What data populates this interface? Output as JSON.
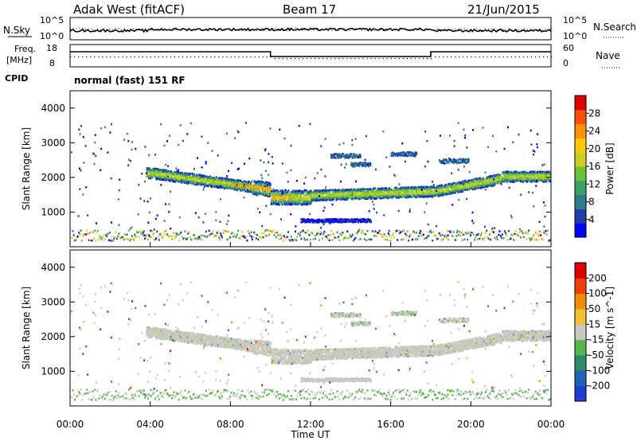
{
  "header": {
    "radar": "Adak West (fitACF)",
    "beam": "Beam 17",
    "date": "21/Jun/2015"
  },
  "top_panel": {
    "left_label": "N.Sky",
    "right_label": "N.Search",
    "left_ticks": [
      "10^5",
      "10^0"
    ],
    "right_ticks": [
      "10^5",
      "10^0"
    ]
  },
  "freq_panel": {
    "left_label_1": "Freq.",
    "left_label_2": "[MHz]",
    "right_label": "Nave",
    "left_ticks": [
      "18",
      "8"
    ],
    "right_ticks": [
      "60",
      "0"
    ]
  },
  "cpid": {
    "label": "CPID",
    "mode": "normal (fast) 151 RF"
  },
  "chart_data": [
    {
      "type": "heatmap",
      "name": "power",
      "ylabel": "Slant Range [km]",
      "yticks": [
        "4000",
        "3000",
        "2000",
        "1000"
      ],
      "colorbar_label": "Power [dB]",
      "colorbar_ticks": [
        "28",
        "24",
        "20",
        "16",
        "12",
        "8",
        "4"
      ],
      "colors": [
        "#0000ff",
        "#1c3fa8",
        "#2e7d8a",
        "#3aa06a",
        "#6ac43a",
        "#c8d020",
        "#ffc800",
        "#ff9000",
        "#ff5000",
        "#e00000"
      ]
    },
    {
      "type": "heatmap",
      "name": "velocity",
      "ylabel": "Slant Range [km]",
      "yticks": [
        "4000",
        "3000",
        "2000",
        "1000"
      ],
      "colorbar_label": "Velocity [m s^-1]",
      "colorbar_ticks": [
        "200",
        "100",
        "50",
        "15",
        "-15",
        "-50",
        "-100",
        "-200"
      ],
      "colors": [
        "#1e3cd2",
        "#1e64b4",
        "#2e8a64",
        "#56b84a",
        "#c8c8c0",
        "#f0c030",
        "#f08c00",
        "#f04000",
        "#e00000"
      ]
    }
  ],
  "xaxis": {
    "ticks": [
      "00:00",
      "04:00",
      "08:00",
      "12:00",
      "16:00",
      "20:00",
      "00:00"
    ],
    "label": "Time UT"
  }
}
